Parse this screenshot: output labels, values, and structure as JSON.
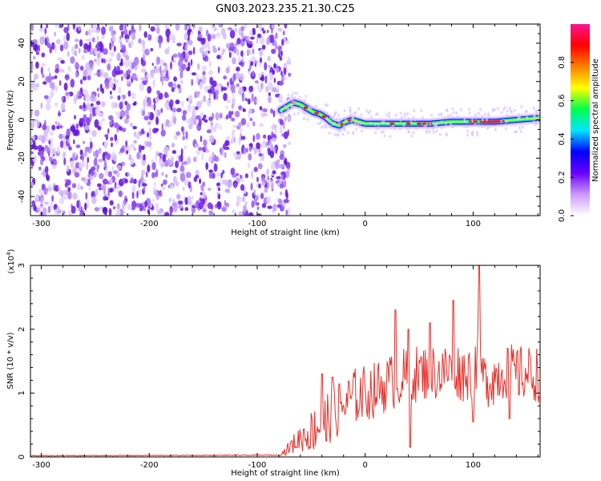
{
  "title": "GN03.2023.235.21.30.C25",
  "chart_data": [
    {
      "type": "heatmap",
      "xlabel": "Height of straight line (km)",
      "ylabel": "Frequency (Hz)",
      "xlim": [
        -310,
        162
      ],
      "ylim": [
        -50,
        50
      ],
      "xticks": [
        -300,
        -200,
        -100,
        0,
        100
      ],
      "yticks": [
        40,
        20,
        0,
        -20,
        -40
      ],
      "colorbar": {
        "label": "Normalized spectral amplitude",
        "range": [
          0,
          1
        ],
        "ticks": [
          "0.0",
          "0.2",
          "0.4",
          "0.6",
          "0.8"
        ],
        "stops": [
          "#ffffff",
          "#cc99ff",
          "#6a00ff",
          "#0000ff",
          "#00e5ff",
          "#00ff4c",
          "#ffff00",
          "#ff7f00",
          "#ff0000",
          "#ff1493"
        ]
      },
      "noise_region_x": [
        -310,
        -70
      ],
      "signal_track": {
        "x": [
          -78,
          -72,
          -66,
          -60,
          -54,
          -48,
          -42,
          -36,
          -30,
          -24,
          -18,
          -12,
          -6,
          0,
          20,
          40,
          60,
          80,
          100,
          120,
          140,
          162
        ],
        "y": [
          5,
          7,
          9,
          8,
          6,
          4,
          3,
          1,
          -2,
          -3,
          -1,
          0,
          -1,
          -2,
          -2,
          -2,
          -2,
          -1,
          -1,
          -1,
          0,
          1
        ]
      }
    },
    {
      "type": "line",
      "xlabel": "Height of straight line (km)",
      "ylabel": "SNR (10 * v/v)",
      "y_scale_label": "(x10",
      "y_scale_exp": "4",
      "y_scale_close": ")",
      "xlim": [
        -310,
        162
      ],
      "ylim": [
        0,
        3
      ],
      "xticks": [
        -300,
        -200,
        -100,
        0,
        100
      ],
      "yticks": [
        0,
        1,
        2,
        3
      ],
      "color": "#e8302a",
      "keypoints": {
        "x": [
          -310,
          -80,
          -75,
          -70,
          -60,
          -50,
          -40,
          -30,
          -20,
          -10,
          0,
          10,
          20,
          30,
          40,
          50,
          60,
          70,
          80,
          90,
          100,
          105,
          110,
          120,
          130,
          140,
          150,
          162
        ],
        "y": [
          0.01,
          0.02,
          0.08,
          0.15,
          0.3,
          0.4,
          0.55,
          0.7,
          0.8,
          0.95,
          1.0,
          1.05,
          1.15,
          1.2,
          1.3,
          1.3,
          1.35,
          1.3,
          1.4,
          1.3,
          1.35,
          1.6,
          1.2,
          1.25,
          1.35,
          1.3,
          1.3,
          1.3
        ]
      },
      "peaks": [
        {
          "x": -40,
          "y": 1.3
        },
        {
          "x": -30,
          "y": 1.25
        },
        {
          "x": 28,
          "y": 2.3
        },
        {
          "x": 40,
          "y": 2.0
        },
        {
          "x": 60,
          "y": 2.1
        },
        {
          "x": 82,
          "y": 2.45
        },
        {
          "x": 106,
          "y": 3.0
        },
        {
          "x": 132,
          "y": 1.7
        }
      ],
      "dips": [
        {
          "x": -36,
          "y": 0.25
        },
        {
          "x": 42,
          "y": 0.15
        },
        {
          "x": 100,
          "y": 0.55
        },
        {
          "x": 134,
          "y": 0.6
        }
      ]
    }
  ]
}
